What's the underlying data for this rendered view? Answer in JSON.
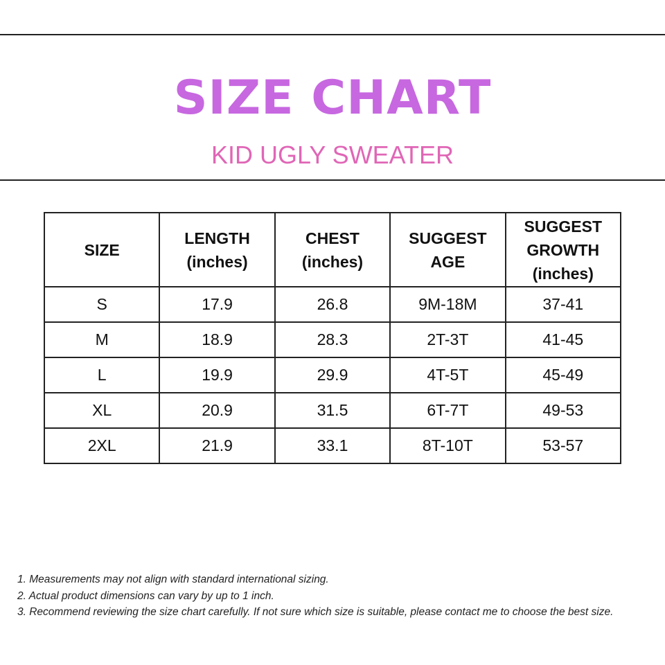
{
  "title": "SIZE CHART",
  "subtitle": "KID UGLY SWEATER",
  "colors": {
    "title": "#c768e0",
    "subtitle": "#e066b6",
    "border": "#222222"
  },
  "table": {
    "headers": [
      [
        "SIZE"
      ],
      [
        "LENGTH",
        "(inches)"
      ],
      [
        "CHEST",
        "(inches)"
      ],
      [
        "SUGGEST",
        "AGE"
      ],
      [
        "SUGGEST",
        "GROWTH",
        "(inches)"
      ]
    ],
    "rows": [
      [
        "S",
        "17.9",
        "26.8",
        "9M-18M",
        "37-41"
      ],
      [
        "M",
        "18.9",
        "28.3",
        "2T-3T",
        "41-45"
      ],
      [
        "L",
        "19.9",
        "29.9",
        "4T-5T",
        "45-49"
      ],
      [
        "XL",
        "20.9",
        "31.5",
        "6T-7T",
        "49-53"
      ],
      [
        "2XL",
        "21.9",
        "33.1",
        "8T-10T",
        "53-57"
      ]
    ]
  },
  "notes": [
    "1. Measurements may not align with standard international sizing.",
    "2. Actual product dimensions can vary by up to 1 inch.",
    "3. Recommend reviewing the size chart carefully. If not sure which size is suitable, please contact me to choose the best size."
  ]
}
